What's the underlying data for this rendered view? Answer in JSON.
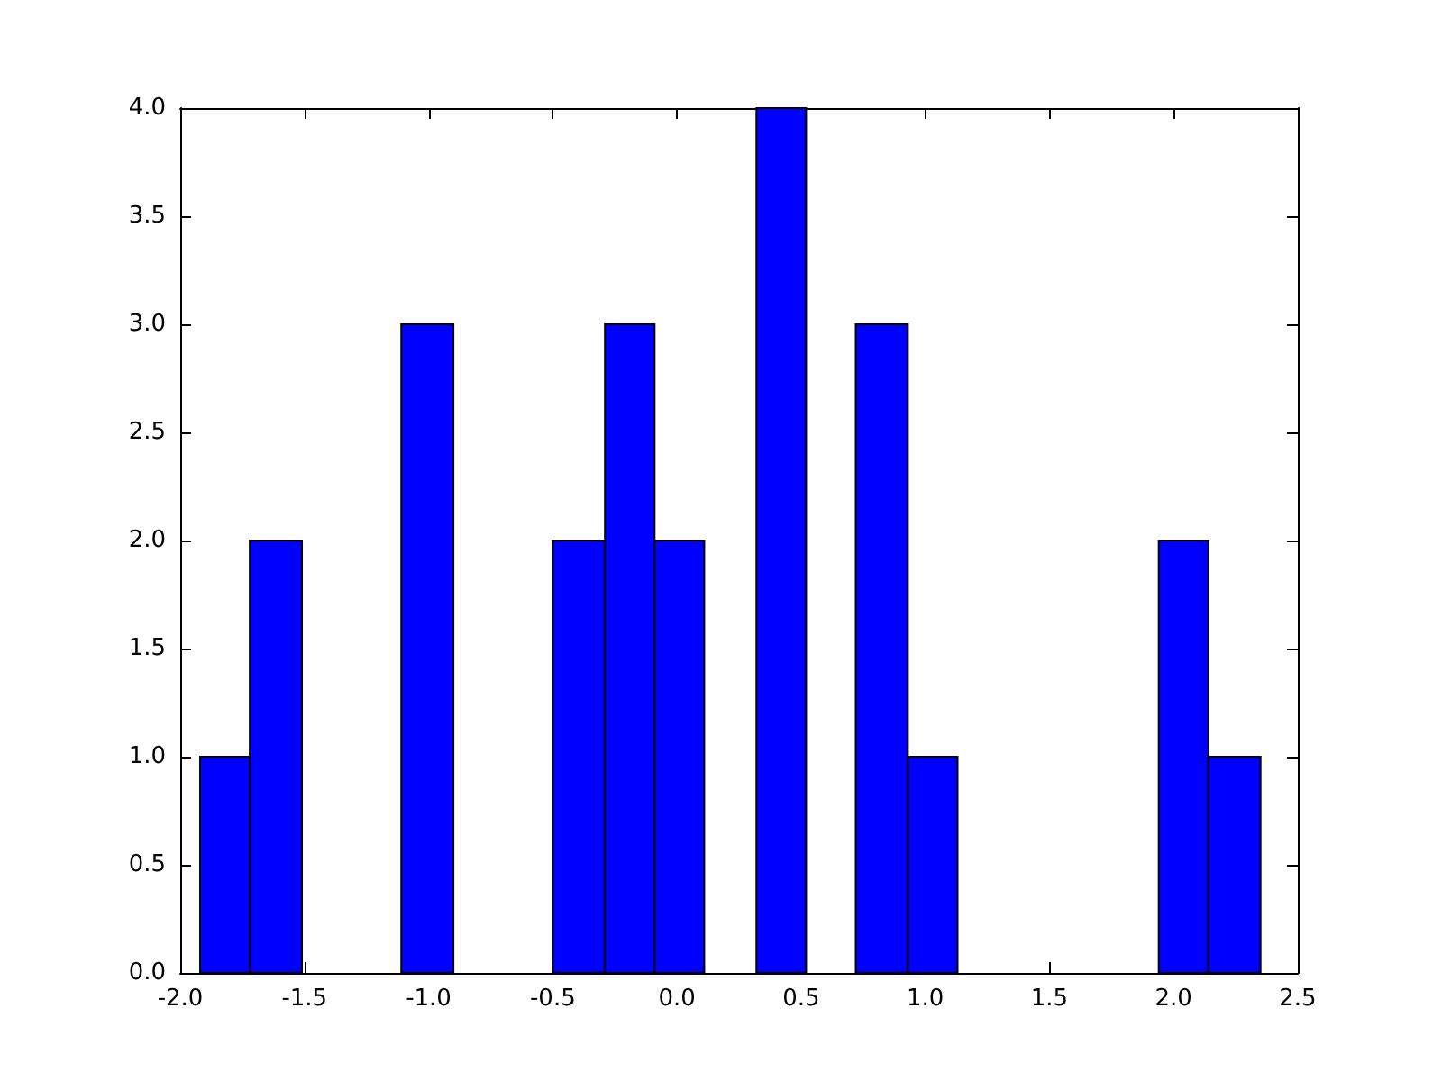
{
  "chart_data": {
    "type": "histogram",
    "bins": [
      -1.92,
      -1.72,
      -1.51,
      -1.11,
      -0.9,
      -0.5,
      -0.29,
      -0.09,
      0.11,
      0.32,
      0.52,
      0.72,
      0.93,
      1.13,
      1.94,
      2.14,
      2.35
    ],
    "values": [
      1,
      2,
      0,
      3,
      0,
      2,
      3,
      2,
      0,
      4,
      0,
      3,
      1,
      0,
      2,
      1
    ],
    "color": "#0000ff",
    "xlim": [
      -2.0,
      2.5
    ],
    "xticks": [
      {
        "value": -2.0,
        "label": "-2.0"
      },
      {
        "value": -1.5,
        "label": "-1.5"
      },
      {
        "value": -1.0,
        "label": "-1.0"
      },
      {
        "value": -0.5,
        "label": "-0.5"
      },
      {
        "value": 0,
        "label": "0.0"
      },
      {
        "value": 0.5,
        "label": "0.5"
      },
      {
        "value": 1.0,
        "label": "1.0"
      },
      {
        "value": 1.5,
        "label": "1.5"
      },
      {
        "value": 2.0,
        "label": "2.0"
      },
      {
        "value": 2.5,
        "label": "2.5"
      }
    ],
    "ylim": [
      0,
      4.0
    ],
    "yticks": [
      {
        "value": 0,
        "label": "0.0"
      },
      {
        "value": 0.5,
        "label": "0.5"
      },
      {
        "value": 1.0,
        "label": "1.0"
      },
      {
        "value": 1.5,
        "label": "1.5"
      },
      {
        "value": 2.0,
        "label": "2.0"
      },
      {
        "value": 2.5,
        "label": "2.5"
      },
      {
        "value": 3.0,
        "label": "3.0"
      },
      {
        "value": 3.5,
        "label": "3.5"
      },
      {
        "value": 4.0,
        "label": "4.0"
      }
    ],
    "grid": false
  }
}
